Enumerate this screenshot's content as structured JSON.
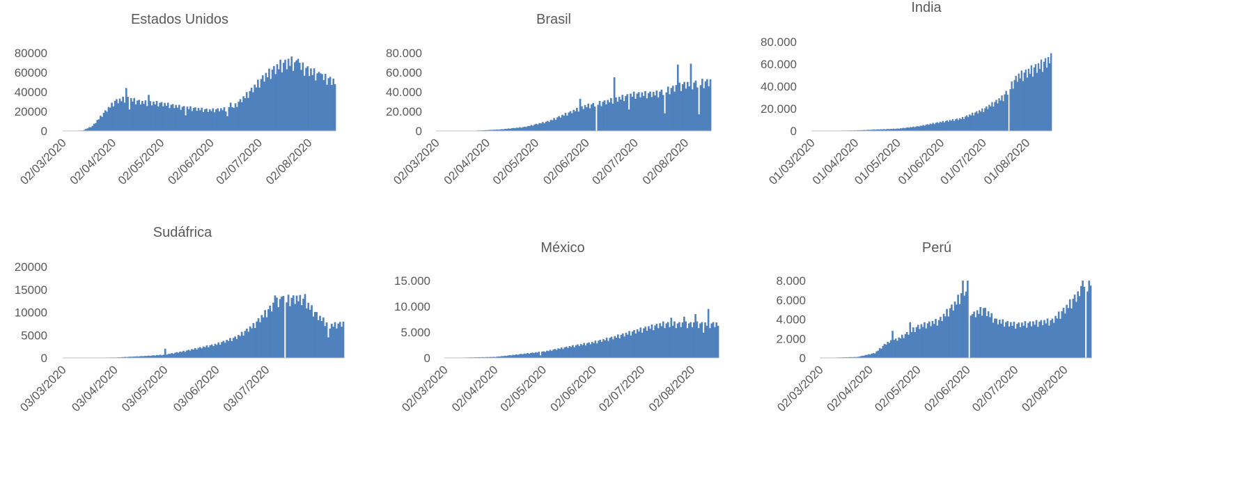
{
  "colors": {
    "bar": "#4F81BD",
    "axis": "#BFBFBF",
    "text": "#595959"
  },
  "chart_data": [
    {
      "type": "bar",
      "title": "Estados Unidos",
      "x_start": "02/03/2020",
      "x_end": "18/08/2020",
      "ylim": [
        0,
        80000
      ],
      "yticks": [
        0,
        20000,
        40000,
        60000,
        80000
      ],
      "ytick_labels": [
        "0",
        "20000",
        "40000",
        "60000",
        "80000"
      ],
      "xtick_labels": [
        "02/03/2020",
        "02/04/2020",
        "02/05/2020",
        "02/06/2020",
        "02/07/2020",
        "02/08/2020"
      ],
      "anchors": [
        [
          "02/03/2020",
          0
        ],
        [
          "14/03/2020",
          500
        ],
        [
          "20/03/2020",
          5000
        ],
        [
          "27/03/2020",
          18000
        ],
        [
          "03/04/2020",
          30000
        ],
        [
          "10/04/2020",
          33000
        ],
        [
          "20/04/2020",
          29000
        ],
        [
          "01/05/2020",
          28000
        ],
        [
          "15/05/2020",
          24000
        ],
        [
          "01/06/2020",
          21000
        ],
        [
          "15/06/2020",
          23000
        ],
        [
          "25/06/2020",
          38000
        ],
        [
          "05/07/2020",
          55000
        ],
        [
          "15/07/2020",
          67000
        ],
        [
          "22/07/2020",
          70000
        ],
        [
          "01/08/2020",
          62000
        ],
        [
          "10/08/2020",
          55000
        ],
        [
          "18/08/2020",
          50000
        ]
      ],
      "spikes": [
        [
          "10/04/2020",
          44000
        ],
        [
          "24/04/2020",
          37000
        ],
        [
          "20/07/2020",
          74000
        ],
        [
          "26/07/2020",
          74000
        ],
        [
          "14/06/2020",
          29000
        ],
        [
          "09/08/2020",
          59000
        ]
      ],
      "dips": [
        [
          "12/04/2020",
          22000
        ],
        [
          "17/05/2020",
          16000
        ],
        [
          "12/06/2020",
          15000
        ]
      ],
      "gaps": []
    },
    {
      "type": "bar",
      "title": "Brasil",
      "x_start": "02/03/2020",
      "x_end": "17/08/2020",
      "ylim": [
        0,
        80000
      ],
      "yticks": [
        0,
        20000,
        40000,
        60000,
        80000
      ],
      "ytick_labels": [
        "0",
        "20.000",
        "40.000",
        "60.000",
        "80.000"
      ],
      "xtick_labels": [
        "02/03/2020",
        "02/04/2020",
        "02/05/2020",
        "02/06/2020",
        "02/07/2020",
        "02/08/2020"
      ],
      "anchors": [
        [
          "02/03/2020",
          0
        ],
        [
          "25/03/2020",
          300
        ],
        [
          "10/04/2020",
          1500
        ],
        [
          "25/04/2020",
          4000
        ],
        [
          "10/05/2020",
          10000
        ],
        [
          "20/05/2020",
          17000
        ],
        [
          "01/06/2020",
          25000
        ],
        [
          "15/06/2020",
          30000
        ],
        [
          "01/07/2020",
          37000
        ],
        [
          "15/07/2020",
          38000
        ],
        [
          "01/08/2020",
          47000
        ],
        [
          "17/08/2020",
          50000
        ]
      ],
      "spikes": [
        [
          "19/06/2020",
          55000
        ],
        [
          "28/07/2020",
          68000
        ],
        [
          "05/08/2020",
          69000
        ],
        [
          "29/05/2020",
          33000
        ]
      ],
      "dips": [
        [
          "20/07/2020",
          18000
        ],
        [
          "10/08/2020",
          17000
        ],
        [
          "28/06/2020",
          22000
        ]
      ],
      "gaps": [
        "08/06/2020"
      ]
    },
    {
      "type": "bar",
      "title": "India",
      "x_start": "01/03/2020",
      "x_end": "18/08/2020",
      "ylim": [
        0,
        80000
      ],
      "yticks": [
        0,
        20000,
        40000,
        60000,
        80000
      ],
      "ytick_labels": [
        "0",
        "20.000",
        "40.000",
        "60.000",
        "80.000"
      ],
      "xtick_labels": [
        "01/03/2020",
        "01/04/2020",
        "01/05/2020",
        "01/06/2020",
        "01/07/2020",
        "01/08/2020"
      ],
      "anchors": [
        [
          "01/03/2020",
          0
        ],
        [
          "01/04/2020",
          500
        ],
        [
          "01/05/2020",
          2000
        ],
        [
          "15/05/2020",
          4000
        ],
        [
          "01/06/2020",
          8000
        ],
        [
          "15/06/2020",
          11000
        ],
        [
          "01/07/2020",
          19000
        ],
        [
          "15/07/2020",
          30000
        ],
        [
          "25/07/2020",
          48000
        ],
        [
          "01/08/2020",
          52000
        ],
        [
          "10/08/2020",
          58000
        ],
        [
          "18/08/2020",
          64000
        ]
      ],
      "spikes": [],
      "dips": [],
      "gaps": [
        "19/07/2020"
      ]
    },
    {
      "type": "bar",
      "title": "Sudáfrica",
      "x_start": "03/03/2020",
      "x_end": "18/08/2020",
      "ylim": [
        0,
        20000
      ],
      "yticks": [
        0,
        5000,
        10000,
        15000,
        20000
      ],
      "ytick_labels": [
        "0",
        "5000",
        "10000",
        "15000",
        "20000"
      ],
      "xtick_labels": [
        "03/03/2020",
        "03/04/2020",
        "03/05/2020",
        "03/06/2020",
        "03/07/2020"
      ],
      "anchors": [
        [
          "03/03/2020",
          0
        ],
        [
          "03/04/2020",
          100
        ],
        [
          "20/04/2020",
          400
        ],
        [
          "03/05/2020",
          700
        ],
        [
          "15/05/2020",
          1500
        ],
        [
          "03/06/2020",
          3000
        ],
        [
          "15/06/2020",
          4500
        ],
        [
          "25/06/2020",
          7000
        ],
        [
          "03/07/2020",
          10000
        ],
        [
          "10/07/2020",
          12500
        ],
        [
          "24/07/2020",
          13000
        ],
        [
          "03/08/2020",
          9000
        ],
        [
          "10/08/2020",
          7000
        ],
        [
          "18/08/2020",
          7500
        ]
      ],
      "spikes": [
        [
          "08/07/2020",
          13700
        ],
        [
          "13/07/2020",
          13600
        ],
        [
          "23/07/2020",
          13800
        ],
        [
          "26/07/2020",
          14000
        ],
        [
          "03/05/2020",
          2000
        ]
      ],
      "dips": [
        [
          "09/08/2020",
          4500
        ]
      ],
      "gaps": [
        "14/07/2020"
      ]
    },
    {
      "type": "bar",
      "title": "México",
      "x_start": "02/03/2020",
      "x_end": "18/08/2020",
      "ylim": [
        0,
        15000
      ],
      "yticks": [
        0,
        5000,
        10000,
        15000
      ],
      "ytick_labels": [
        "0",
        "5.000",
        "10.000",
        "15.000"
      ],
      "xtick_labels": [
        "02/03/2020",
        "02/04/2020",
        "02/05/2020",
        "02/06/2020",
        "02/07/2020",
        "02/08/2020"
      ],
      "anchors": [
        [
          "02/03/2020",
          0
        ],
        [
          "02/04/2020",
          200
        ],
        [
          "02/05/2020",
          1200
        ],
        [
          "15/05/2020",
          2000
        ],
        [
          "02/06/2020",
          3000
        ],
        [
          "15/06/2020",
          4000
        ],
        [
          "02/07/2020",
          5500
        ],
        [
          "15/07/2020",
          6500
        ],
        [
          "02/08/2020",
          6500
        ],
        [
          "18/08/2020",
          6500
        ]
      ],
      "spikes": [
        [
          "12/08/2020",
          9500
        ],
        [
          "04/08/2020",
          8500
        ],
        [
          "28/07/2020",
          8000
        ],
        [
          "20/07/2020",
          7800
        ]
      ],
      "dips": [
        [
          "30/04/2020",
          500
        ],
        [
          "09/08/2020",
          4900
        ]
      ],
      "gaps": []
    },
    {
      "type": "bar",
      "title": "Perú",
      "x_start": "02/03/2020",
      "x_end": "18/08/2020",
      "ylim": [
        0,
        8000
      ],
      "yticks": [
        0,
        2000,
        4000,
        6000,
        8000
      ],
      "ytick_labels": [
        "0",
        "2.000",
        "4.000",
        "6.000",
        "8.000"
      ],
      "xtick_labels": [
        "02/03/2020",
        "02/04/2020",
        "02/05/2020",
        "02/06/2020",
        "02/07/2020",
        "02/08/2020"
      ],
      "anchors": [
        [
          "02/03/2020",
          0
        ],
        [
          "25/03/2020",
          100
        ],
        [
          "05/04/2020",
          500
        ],
        [
          "12/04/2020",
          1500
        ],
        [
          "20/04/2020",
          2000
        ],
        [
          "02/05/2020",
          3200
        ],
        [
          "15/05/2020",
          3800
        ],
        [
          "25/05/2020",
          5500
        ],
        [
          "31/05/2020",
          7000
        ],
        [
          "05/06/2020",
          4400
        ],
        [
          "12/06/2020",
          5000
        ],
        [
          "20/06/2020",
          3800
        ],
        [
          "02/07/2020",
          3400
        ],
        [
          "15/07/2020",
          3600
        ],
        [
          "25/07/2020",
          3800
        ],
        [
          "02/08/2020",
          5000
        ],
        [
          "10/08/2020",
          6500
        ],
        [
          "18/08/2020",
          7800
        ]
      ],
      "spikes": [
        [
          "16/04/2020",
          2800
        ],
        [
          "27/04/2020",
          3700
        ],
        [
          "30/05/2020",
          8000
        ],
        [
          "02/06/2020",
          8000
        ],
        [
          "13/08/2020",
          8000
        ]
      ],
      "dips": [],
      "gaps": [
        "03/06/2020",
        "15/08/2020"
      ]
    }
  ]
}
